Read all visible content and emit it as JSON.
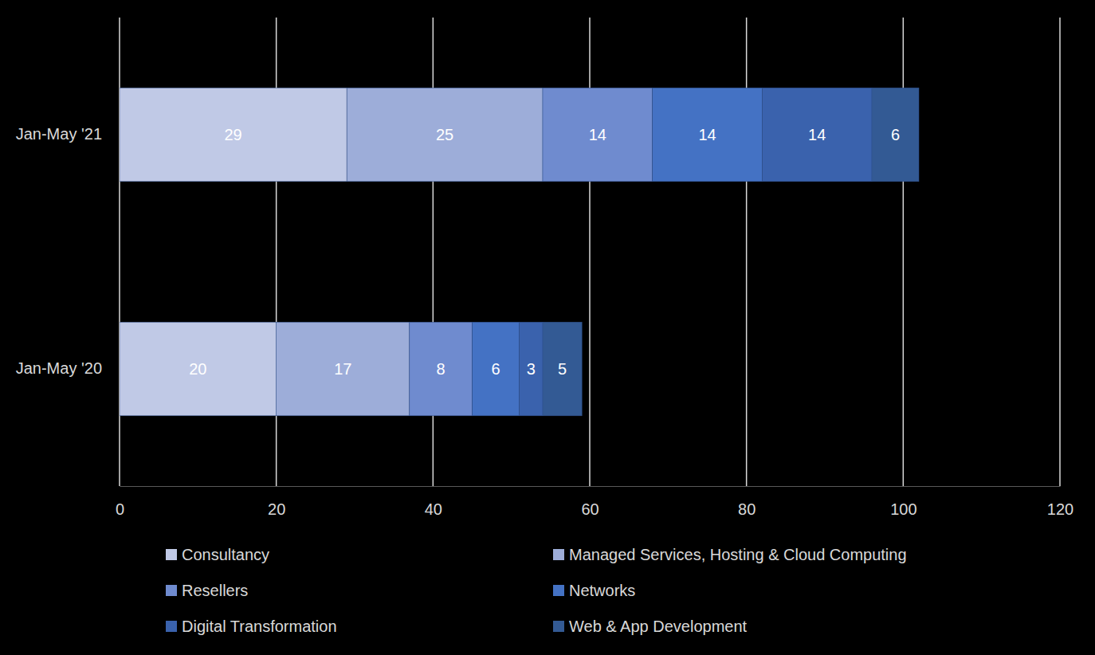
{
  "chart_data": {
    "type": "bar",
    "orientation": "horizontal",
    "stacked": true,
    "data_labels": true,
    "grid": true,
    "legend": "bottom",
    "categories": [
      "Jan-May '21",
      "Jan-May '20"
    ],
    "series": [
      {
        "name": "Consultancy",
        "color": "#c0c9e6",
        "values": [
          29,
          20
        ]
      },
      {
        "name": "Managed Services, Hosting & Cloud Computing",
        "color": "#9dadd9",
        "values": [
          25,
          17
        ]
      },
      {
        "name": "Resellers",
        "color": "#6f8bcf",
        "values": [
          14,
          8
        ]
      },
      {
        "name": "Networks",
        "color": "#4472c4",
        "values": [
          14,
          6
        ]
      },
      {
        "name": "Digital Transformation",
        "color": "#3a62ad",
        "values": [
          14,
          3
        ]
      },
      {
        "name": "Web & App Development",
        "color": "#335a94",
        "values": [
          6,
          5
        ]
      }
    ],
    "xlim": [
      0,
      120
    ],
    "xticks": [
      0,
      20,
      40,
      60,
      80,
      100,
      120
    ]
  }
}
